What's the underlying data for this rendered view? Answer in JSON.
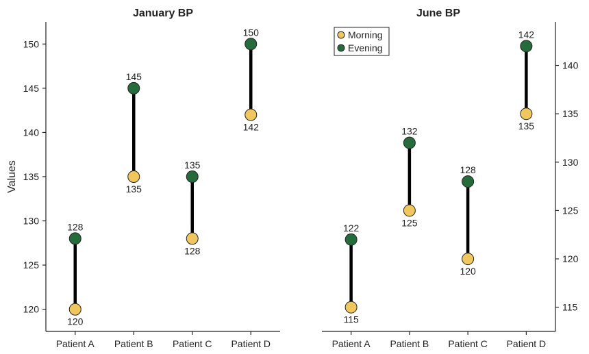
{
  "colors": {
    "morning": "#F0C75E",
    "evening": "#256B3B",
    "connector": "#000000",
    "axis": "#222222"
  },
  "chart_data": [
    {
      "type": "dumbbell",
      "title": "January BP",
      "ylabel": "Values",
      "categories": [
        "Patient A",
        "Patient B",
        "Patient C",
        "Patient D"
      ],
      "series": [
        {
          "name": "Morning",
          "values": [
            120,
            135,
            128,
            142
          ]
        },
        {
          "name": "Evening",
          "values": [
            128,
            145,
            135,
            150
          ]
        }
      ],
      "ylim": [
        117.5,
        152.5
      ],
      "yticks": [
        120,
        125,
        130,
        135,
        140,
        145,
        150
      ],
      "yaxis_side": "left",
      "legend": false
    },
    {
      "type": "dumbbell",
      "title": "June BP",
      "ylabel": "",
      "categories": [
        "Patient A",
        "Patient B",
        "Patient C",
        "Patient D"
      ],
      "series": [
        {
          "name": "Morning",
          "values": [
            115,
            125,
            120,
            135
          ]
        },
        {
          "name": "Evening",
          "values": [
            122,
            132,
            128,
            142
          ]
        }
      ],
      "ylim": [
        112.5,
        144.5
      ],
      "yticks": [
        115,
        120,
        125,
        130,
        135,
        140
      ],
      "yaxis_side": "right",
      "legend": true,
      "legend_position": "top-left"
    }
  ]
}
